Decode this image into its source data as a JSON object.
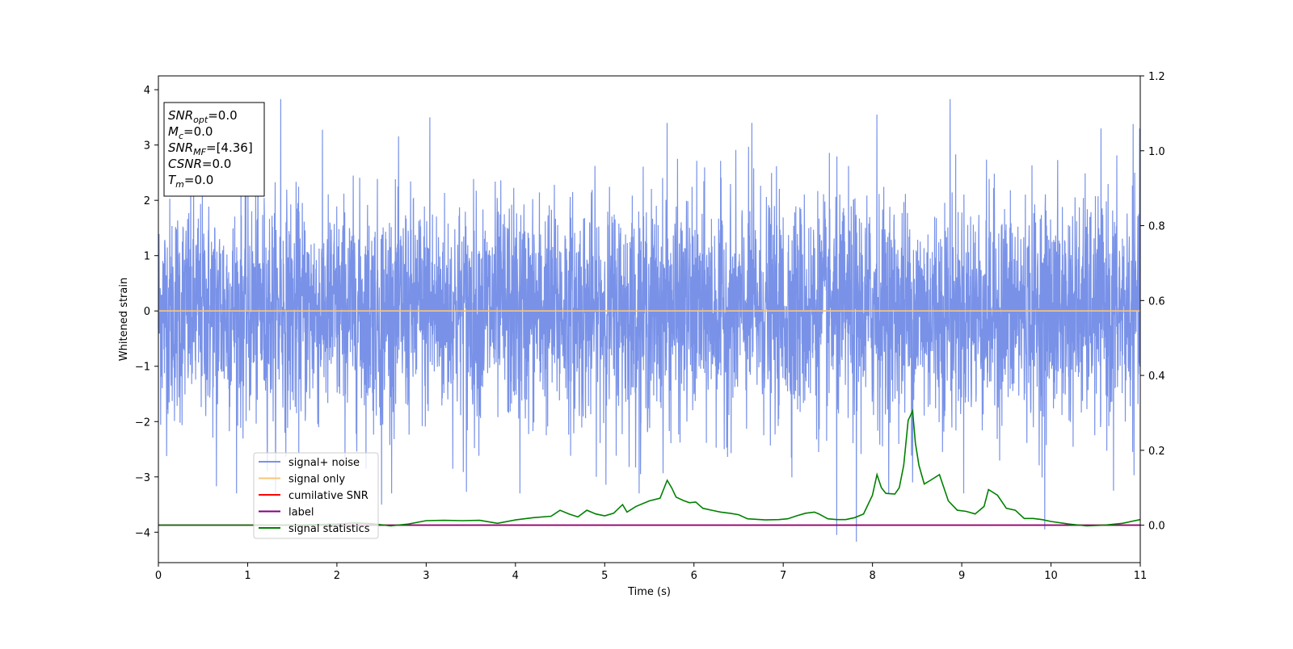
{
  "chart_data": {
    "type": "line",
    "xlabel": "Time (s)",
    "ylabel": "Whitened strain",
    "xlim": [
      0,
      11
    ],
    "ylim": [
      -4.55,
      4.25
    ],
    "y2lim": [
      -0.1,
      1.2
    ],
    "x_ticks": [
      0,
      1,
      2,
      3,
      4,
      5,
      6,
      7,
      8,
      9,
      10,
      11
    ],
    "y_ticks": [
      -4,
      -3,
      -2,
      -1,
      0,
      1,
      2,
      3,
      4
    ],
    "y2_ticks": [
      0.0,
      0.2,
      0.4,
      0.6,
      0.8,
      1.0,
      1.2
    ],
    "grid": false,
    "legend_position": "lower-left",
    "annotation_box": [
      {
        "name": "SNR",
        "sub": "opt",
        "value": "=0.0"
      },
      {
        "name": "M",
        "sub": "c",
        "value": "=0.0"
      },
      {
        "name": "SNR",
        "sub": "MF",
        "value": "=[4.36]"
      },
      {
        "name": "CSNR",
        "sub": "",
        "value": "=0.0"
      },
      {
        "name": "T",
        "sub": "m",
        "value": "=0.0"
      }
    ],
    "series": [
      {
        "name": "signal+ noise",
        "color": "#7992e8",
        "axis": "left",
        "description_values": "white noise, approx. standard deviation 1.0, sampled densely over 0–11 s",
        "x_range": [
          0,
          11
        ],
        "spikes": [
          [
            1.37,
            3.83
          ],
          [
            3.04,
            3.5
          ],
          [
            3.45,
            -3.27
          ],
          [
            0.65,
            -3.17
          ],
          [
            2.5,
            -3.5
          ],
          [
            5.7,
            3.4
          ],
          [
            6.65,
            3.4
          ],
          [
            7.6,
            -4.05
          ],
          [
            7.82,
            -4.17
          ],
          [
            8.05,
            3.55
          ],
          [
            8.87,
            3.83
          ],
          [
            9.93,
            -3.95
          ],
          [
            10.92,
            3.38
          ],
          [
            10.7,
            -3.25
          ],
          [
            8.45,
            -3.1
          ],
          [
            5.4,
            -2.95
          ],
          [
            4.05,
            -3.3
          ]
        ]
      },
      {
        "name": "signal only",
        "color": "#f7c677",
        "axis": "left",
        "x": [
          0,
          11
        ],
        "y": [
          0,
          0
        ]
      },
      {
        "name": "cumilative SNR",
        "color": "#ff0000",
        "axis": "right",
        "x": [
          0,
          11
        ],
        "y": [
          0,
          0
        ]
      },
      {
        "name": "label",
        "color": "#800080",
        "axis": "right",
        "x": [
          0,
          11
        ],
        "y": [
          0,
          0
        ]
      },
      {
        "name": "signal statistics",
        "color": "#008000",
        "axis": "right",
        "x": [
          0,
          0.5,
          1,
          1.5,
          2,
          2.2,
          2.4,
          2.6,
          2.8,
          3,
          3.2,
          3.4,
          3.6,
          3.8,
          4,
          4.2,
          4.4,
          4.5,
          4.6,
          4.7,
          4.8,
          4.9,
          5,
          5.1,
          5.2,
          5.25,
          5.35,
          5.5,
          5.62,
          5.7,
          5.75,
          5.8,
          5.88,
          5.95,
          6.02,
          6.1,
          6.2,
          6.3,
          6.4,
          6.5,
          6.6,
          6.8,
          6.95,
          7.05,
          7.15,
          7.25,
          7.35,
          7.4,
          7.5,
          7.6,
          7.7,
          7.8,
          7.9,
          8,
          8.05,
          8.1,
          8.15,
          8.25,
          8.3,
          8.35,
          8.4,
          8.45,
          8.48,
          8.52,
          8.58,
          8.65,
          8.75,
          8.85,
          8.95,
          9.05,
          9.15,
          9.25,
          9.3,
          9.4,
          9.5,
          9.6,
          9.7,
          9.8,
          9.9,
          10,
          10.2,
          10.4,
          10.6,
          10.8,
          11
        ],
        "y": [
          0.0,
          0.0,
          0.0,
          0.0,
          0.003,
          0.006,
          0.004,
          -0.002,
          0.003,
          0.012,
          0.013,
          0.012,
          0.013,
          0.005,
          0.014,
          0.02,
          0.024,
          0.04,
          0.03,
          0.022,
          0.04,
          0.03,
          0.025,
          0.032,
          0.055,
          0.035,
          0.05,
          0.065,
          0.072,
          0.12,
          0.1,
          0.075,
          0.066,
          0.06,
          0.062,
          0.045,
          0.04,
          0.035,
          0.032,
          0.028,
          0.017,
          0.014,
          0.015,
          0.017,
          0.025,
          0.032,
          0.035,
          0.03,
          0.017,
          0.015,
          0.015,
          0.02,
          0.03,
          0.08,
          0.135,
          0.1,
          0.085,
          0.083,
          0.1,
          0.16,
          0.28,
          0.305,
          0.22,
          0.16,
          0.11,
          0.12,
          0.135,
          0.065,
          0.04,
          0.037,
          0.03,
          0.05,
          0.095,
          0.08,
          0.045,
          0.04,
          0.018,
          0.018,
          0.015,
          0.01,
          0.003,
          -0.002,
          0.0,
          0.005,
          0.015
        ]
      }
    ]
  }
}
